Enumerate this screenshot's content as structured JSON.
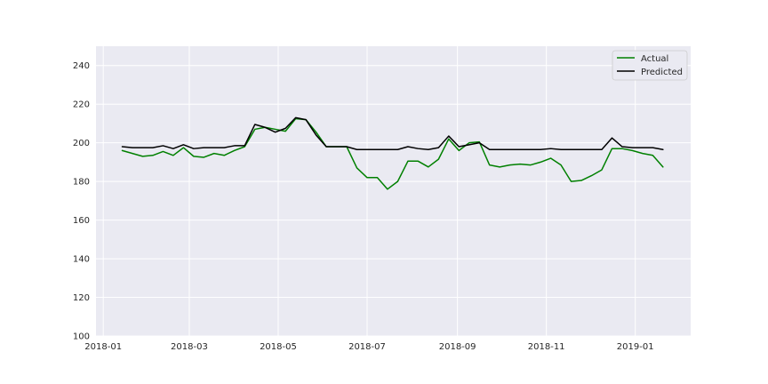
{
  "chart_data": {
    "type": "line",
    "title": "",
    "xlabel": "",
    "ylabel": "",
    "grid": true,
    "legend_position": "top-right",
    "xlim": [
      "2017-12-27",
      "2019-02-08"
    ],
    "ylim": [
      100,
      250
    ],
    "x_ticks": [
      "2018-01",
      "2018-03",
      "2018-05",
      "2018-07",
      "2018-09",
      "2018-11",
      "2019-01"
    ],
    "y_ticks": [
      100,
      120,
      140,
      160,
      180,
      200,
      220,
      240
    ],
    "x": [
      "2018-01-14",
      "2018-01-21",
      "2018-01-28",
      "2018-02-04",
      "2018-02-11",
      "2018-02-18",
      "2018-02-25",
      "2018-03-04",
      "2018-03-11",
      "2018-03-18",
      "2018-03-25",
      "2018-04-01",
      "2018-04-08",
      "2018-04-15",
      "2018-04-22",
      "2018-04-29",
      "2018-05-06",
      "2018-05-13",
      "2018-05-20",
      "2018-05-27",
      "2018-06-03",
      "2018-06-10",
      "2018-06-17",
      "2018-06-24",
      "2018-07-01",
      "2018-07-08",
      "2018-07-15",
      "2018-07-22",
      "2018-07-29",
      "2018-08-05",
      "2018-08-12",
      "2018-08-19",
      "2018-08-26",
      "2018-09-02",
      "2018-09-09",
      "2018-09-16",
      "2018-09-23",
      "2018-09-30",
      "2018-10-07",
      "2018-10-14",
      "2018-10-21",
      "2018-10-28",
      "2018-11-04",
      "2018-11-11",
      "2018-11-18",
      "2018-11-25",
      "2018-12-02",
      "2018-12-09",
      "2018-12-16",
      "2018-12-23",
      "2018-12-30",
      "2019-01-06",
      "2019-01-13",
      "2019-01-20"
    ],
    "series": [
      {
        "name": "Actual",
        "color": "#008000",
        "values": [
          196,
          194.5,
          193,
          193.5,
          195.5,
          193.5,
          197.5,
          193,
          192.5,
          194.5,
          193.5,
          196,
          198,
          207,
          208,
          207,
          206,
          212.5,
          212,
          205.5,
          198,
          198,
          198,
          187,
          182,
          182,
          176,
          180,
          190.5,
          190.5,
          187.5,
          191.5,
          202,
          196,
          200,
          200.5,
          188.5,
          187.5,
          188.5,
          189,
          188.5,
          190,
          192,
          188.5,
          180,
          180.5,
          183,
          186,
          197,
          197,
          196,
          194.5,
          193.5,
          187.5
        ]
      },
      {
        "name": "Predicted",
        "color": "#000000",
        "values": [
          198,
          197.5,
          197.5,
          197.5,
          198.5,
          197,
          199,
          197,
          197.5,
          197.5,
          197.5,
          198.5,
          198.5,
          209.5,
          208,
          205.5,
          207.5,
          213,
          212,
          204,
          198,
          198,
          198,
          196.5,
          196.5,
          196.5,
          196.5,
          196.5,
          198,
          197,
          196.5,
          197.5,
          203.5,
          198,
          199,
          200,
          196.5,
          196.5,
          196.5,
          196.5,
          196.5,
          196.5,
          197,
          196.5,
          196.5,
          196.5,
          196.5,
          196.5,
          202.5,
          198,
          197.5,
          197.5,
          197.5,
          196.5
        ]
      }
    ]
  }
}
